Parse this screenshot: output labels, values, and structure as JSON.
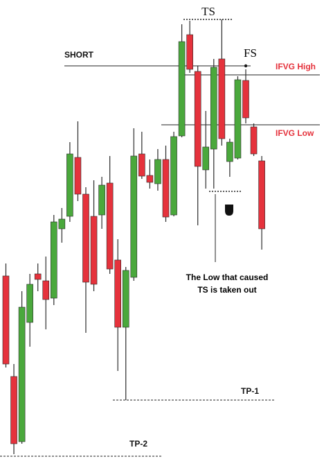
{
  "chart_data": {
    "type": "candlestick",
    "ylim": [
      0,
      662
    ],
    "up_color": "#4aa83c",
    "down_color": "#e5323c",
    "wick_color": "#2a2a2a",
    "open": [
      264,
      119,
      25,
      197,
      267,
      257,
      232,
      332,
      350,
      435,
      382,
      350,
      352,
      398,
      287,
      190,
      262,
      440,
      409,
      397,
      432,
      352,
      466,
      612,
      559,
      417,
      447,
      577,
      429,
      434,
      546,
      479,
      430
    ],
    "high": [
      282,
      137,
      242,
      267,
      282,
      292,
      352,
      362,
      457,
      487,
      392,
      402,
      407,
      437,
      317,
      277,
      477,
      472,
      432,
      447,
      452,
      472,
      627,
      632,
      567,
      502,
      577,
      634,
      462,
      552,
      562,
      484,
      437
    ],
    "low": [
      132,
      7,
      22,
      162,
      242,
      187,
      222,
      312,
      342,
      372,
      182,
      242,
      332,
      267,
      127,
      85,
      257,
      404,
      390,
      387,
      342,
      350,
      464,
      557,
      337,
      390,
      390,
      452,
      407,
      432,
      484,
      437,
      302
    ],
    "close": [
      137,
      22,
      219,
      252,
      259,
      230,
      342,
      346,
      440,
      382,
      255,
      252,
      395,
      274,
      190,
      272,
      437,
      408,
      399,
      432,
      349,
      465,
      602,
      562,
      422,
      450,
      565,
      462,
      457,
      547,
      492,
      440,
      332
    ],
    "levels": [
      {
        "label": "SHORT",
        "value": 567
      },
      {
        "label": "IFVG High",
        "value": 554
      },
      {
        "label": "IFVG Low",
        "value": 482
      },
      {
        "label": "TS",
        "value": 634
      },
      {
        "value": 386
      },
      {
        "label": "TP-1",
        "value": 85
      },
      {
        "label": "TP-2",
        "value": 4
      }
    ],
    "fs_label": "FS",
    "annotation": [
      "The Low that caused",
      "TS is taken out"
    ]
  }
}
